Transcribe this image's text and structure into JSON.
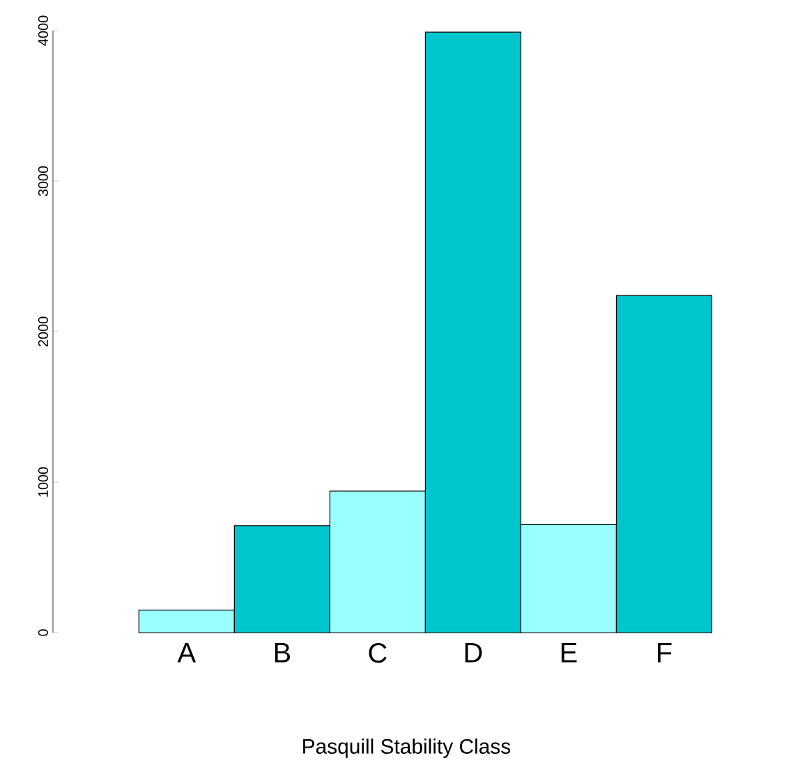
{
  "chart_data": {
    "type": "bar",
    "xlabel": "Pasquill Stability Class",
    "categories": [
      "A",
      "B",
      "C",
      "D",
      "E",
      "F"
    ],
    "values": [
      150,
      710,
      940,
      3990,
      720,
      2240
    ],
    "colors": [
      "#99ffff",
      "#00c5cd",
      "#99ffff",
      "#00c5cd",
      "#99ffff",
      "#00c5cd"
    ],
    "ylim": [
      0,
      4000
    ],
    "yticks": [
      0,
      1000,
      2000,
      3000,
      4000
    ]
  }
}
